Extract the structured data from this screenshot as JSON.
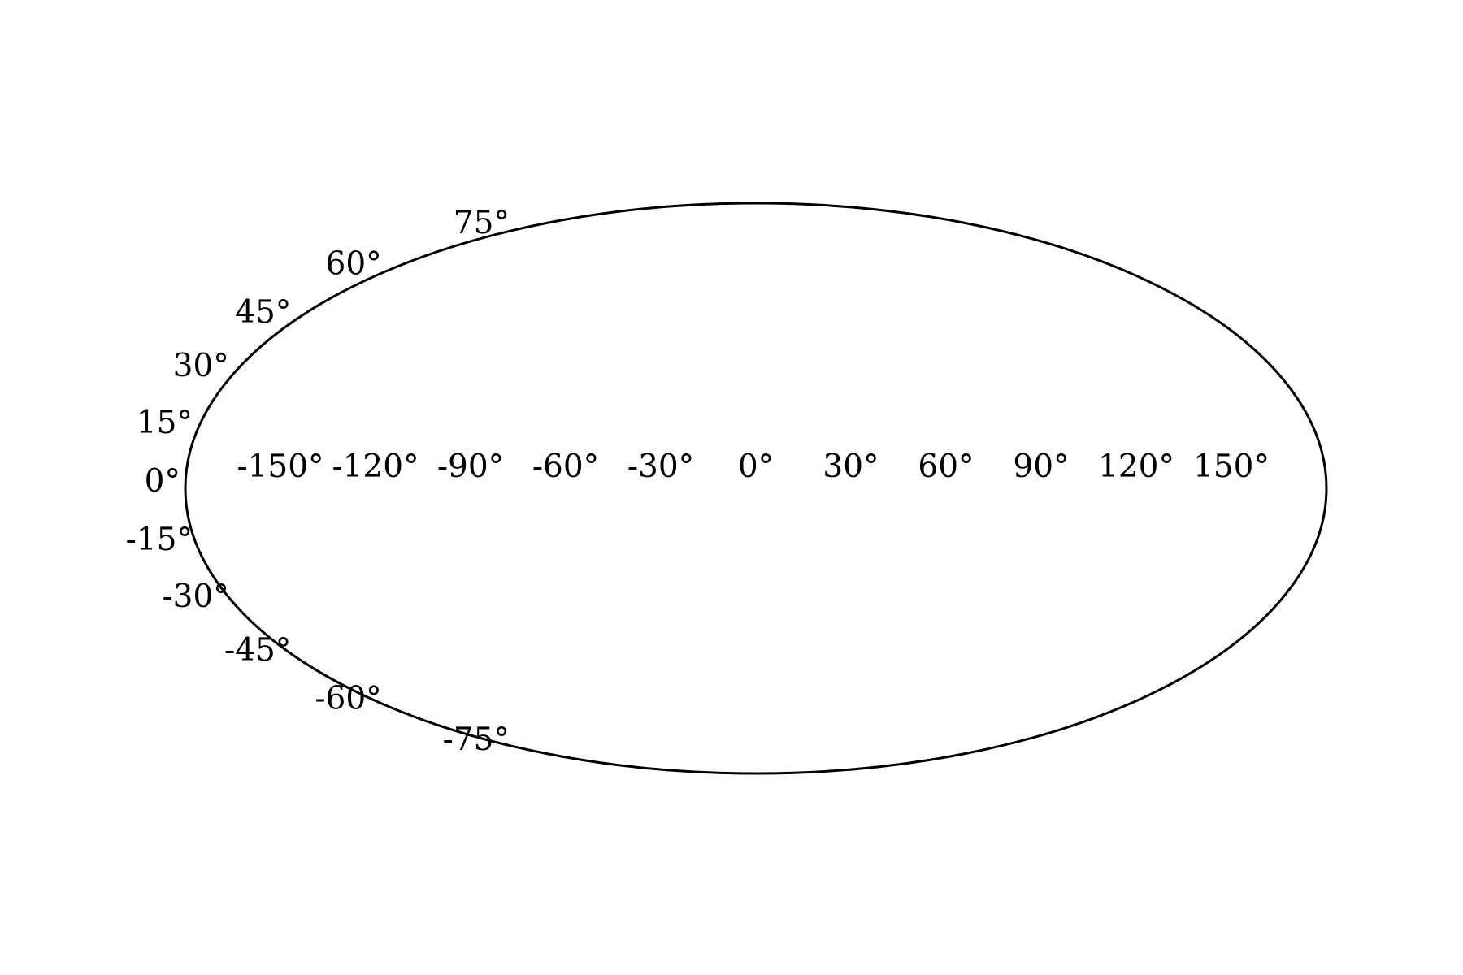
{
  "chart_data": {
    "type": "map",
    "projection": "mollweide",
    "title": "",
    "xlabel": "",
    "ylabel": "",
    "series": [],
    "grid": false,
    "frame_color": "#000000",
    "background": "#ffffff",
    "longitude_ticks": [
      {
        "value": -150,
        "label": "-150°"
      },
      {
        "value": -120,
        "label": "-120°"
      },
      {
        "value": -90,
        "label": "-90°"
      },
      {
        "value": -60,
        "label": "-60°"
      },
      {
        "value": -30,
        "label": "-30°"
      },
      {
        "value": 0,
        "label": "0°"
      },
      {
        "value": 30,
        "label": "30°"
      },
      {
        "value": 60,
        "label": "60°"
      },
      {
        "value": 90,
        "label": "90°"
      },
      {
        "value": 120,
        "label": "120°"
      },
      {
        "value": 150,
        "label": "150°"
      }
    ],
    "latitude_ticks": [
      {
        "value": 75,
        "label": "75°"
      },
      {
        "value": 60,
        "label": "60°"
      },
      {
        "value": 45,
        "label": "45°"
      },
      {
        "value": 30,
        "label": "30°"
      },
      {
        "value": 15,
        "label": "15°"
      },
      {
        "value": 0,
        "label": "0°"
      },
      {
        "value": -15,
        "label": "-15°"
      },
      {
        "value": -30,
        "label": "-30°"
      },
      {
        "value": -45,
        "label": "-45°"
      },
      {
        "value": -60,
        "label": "-60°"
      },
      {
        "value": -75,
        "label": "-75°"
      }
    ]
  }
}
